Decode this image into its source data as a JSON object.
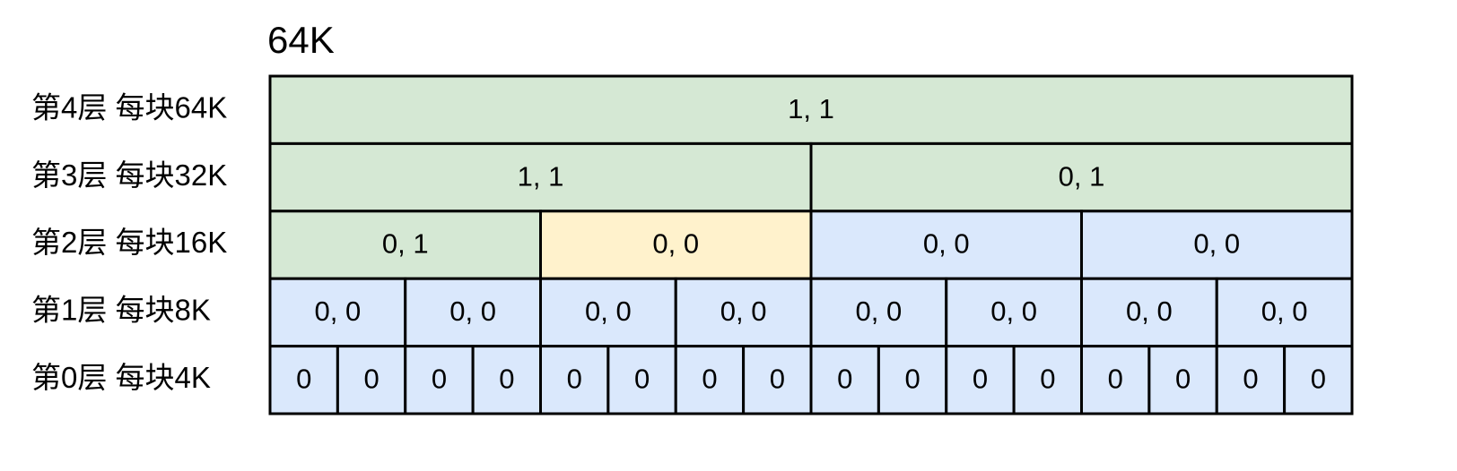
{
  "title": "64K",
  "levels": [
    {
      "label": "第4层 每块64K",
      "cells": [
        {
          "text": "1, 1",
          "color": "#d5e8d4"
        }
      ]
    },
    {
      "label": "第3层 每块32K",
      "cells": [
        {
          "text": "1, 1",
          "color": "#d5e8d4"
        },
        {
          "text": "0, 1",
          "color": "#d5e8d4"
        }
      ]
    },
    {
      "label": "第2层 每块16K",
      "cells": [
        {
          "text": "0, 1",
          "color": "#d5e8d4"
        },
        {
          "text": "0, 0",
          "color": "#fff2cc"
        },
        {
          "text": "0, 0",
          "color": "#dae8fc"
        },
        {
          "text": "0, 0",
          "color": "#dae8fc"
        }
      ]
    },
    {
      "label": "第1层 每块8K",
      "cells": [
        {
          "text": "0, 0",
          "color": "#dae8fc"
        },
        {
          "text": "0, 0",
          "color": "#dae8fc"
        },
        {
          "text": "0, 0",
          "color": "#dae8fc"
        },
        {
          "text": "0, 0",
          "color": "#dae8fc"
        },
        {
          "text": "0, 0",
          "color": "#dae8fc"
        },
        {
          "text": "0, 0",
          "color": "#dae8fc"
        },
        {
          "text": "0, 0",
          "color": "#dae8fc"
        },
        {
          "text": "0, 0",
          "color": "#dae8fc"
        }
      ]
    },
    {
      "label": "第0层 每块4K",
      "cells": [
        {
          "text": "0",
          "color": "#dae8fc"
        },
        {
          "text": "0",
          "color": "#dae8fc"
        },
        {
          "text": "0",
          "color": "#dae8fc"
        },
        {
          "text": "0",
          "color": "#dae8fc"
        },
        {
          "text": "0",
          "color": "#dae8fc"
        },
        {
          "text": "0",
          "color": "#dae8fc"
        },
        {
          "text": "0",
          "color": "#dae8fc"
        },
        {
          "text": "0",
          "color": "#dae8fc"
        },
        {
          "text": "0",
          "color": "#dae8fc"
        },
        {
          "text": "0",
          "color": "#dae8fc"
        },
        {
          "text": "0",
          "color": "#dae8fc"
        },
        {
          "text": "0",
          "color": "#dae8fc"
        },
        {
          "text": "0",
          "color": "#dae8fc"
        },
        {
          "text": "0",
          "color": "#dae8fc"
        },
        {
          "text": "0",
          "color": "#dae8fc"
        },
        {
          "text": "0",
          "color": "#dae8fc"
        }
      ]
    }
  ]
}
